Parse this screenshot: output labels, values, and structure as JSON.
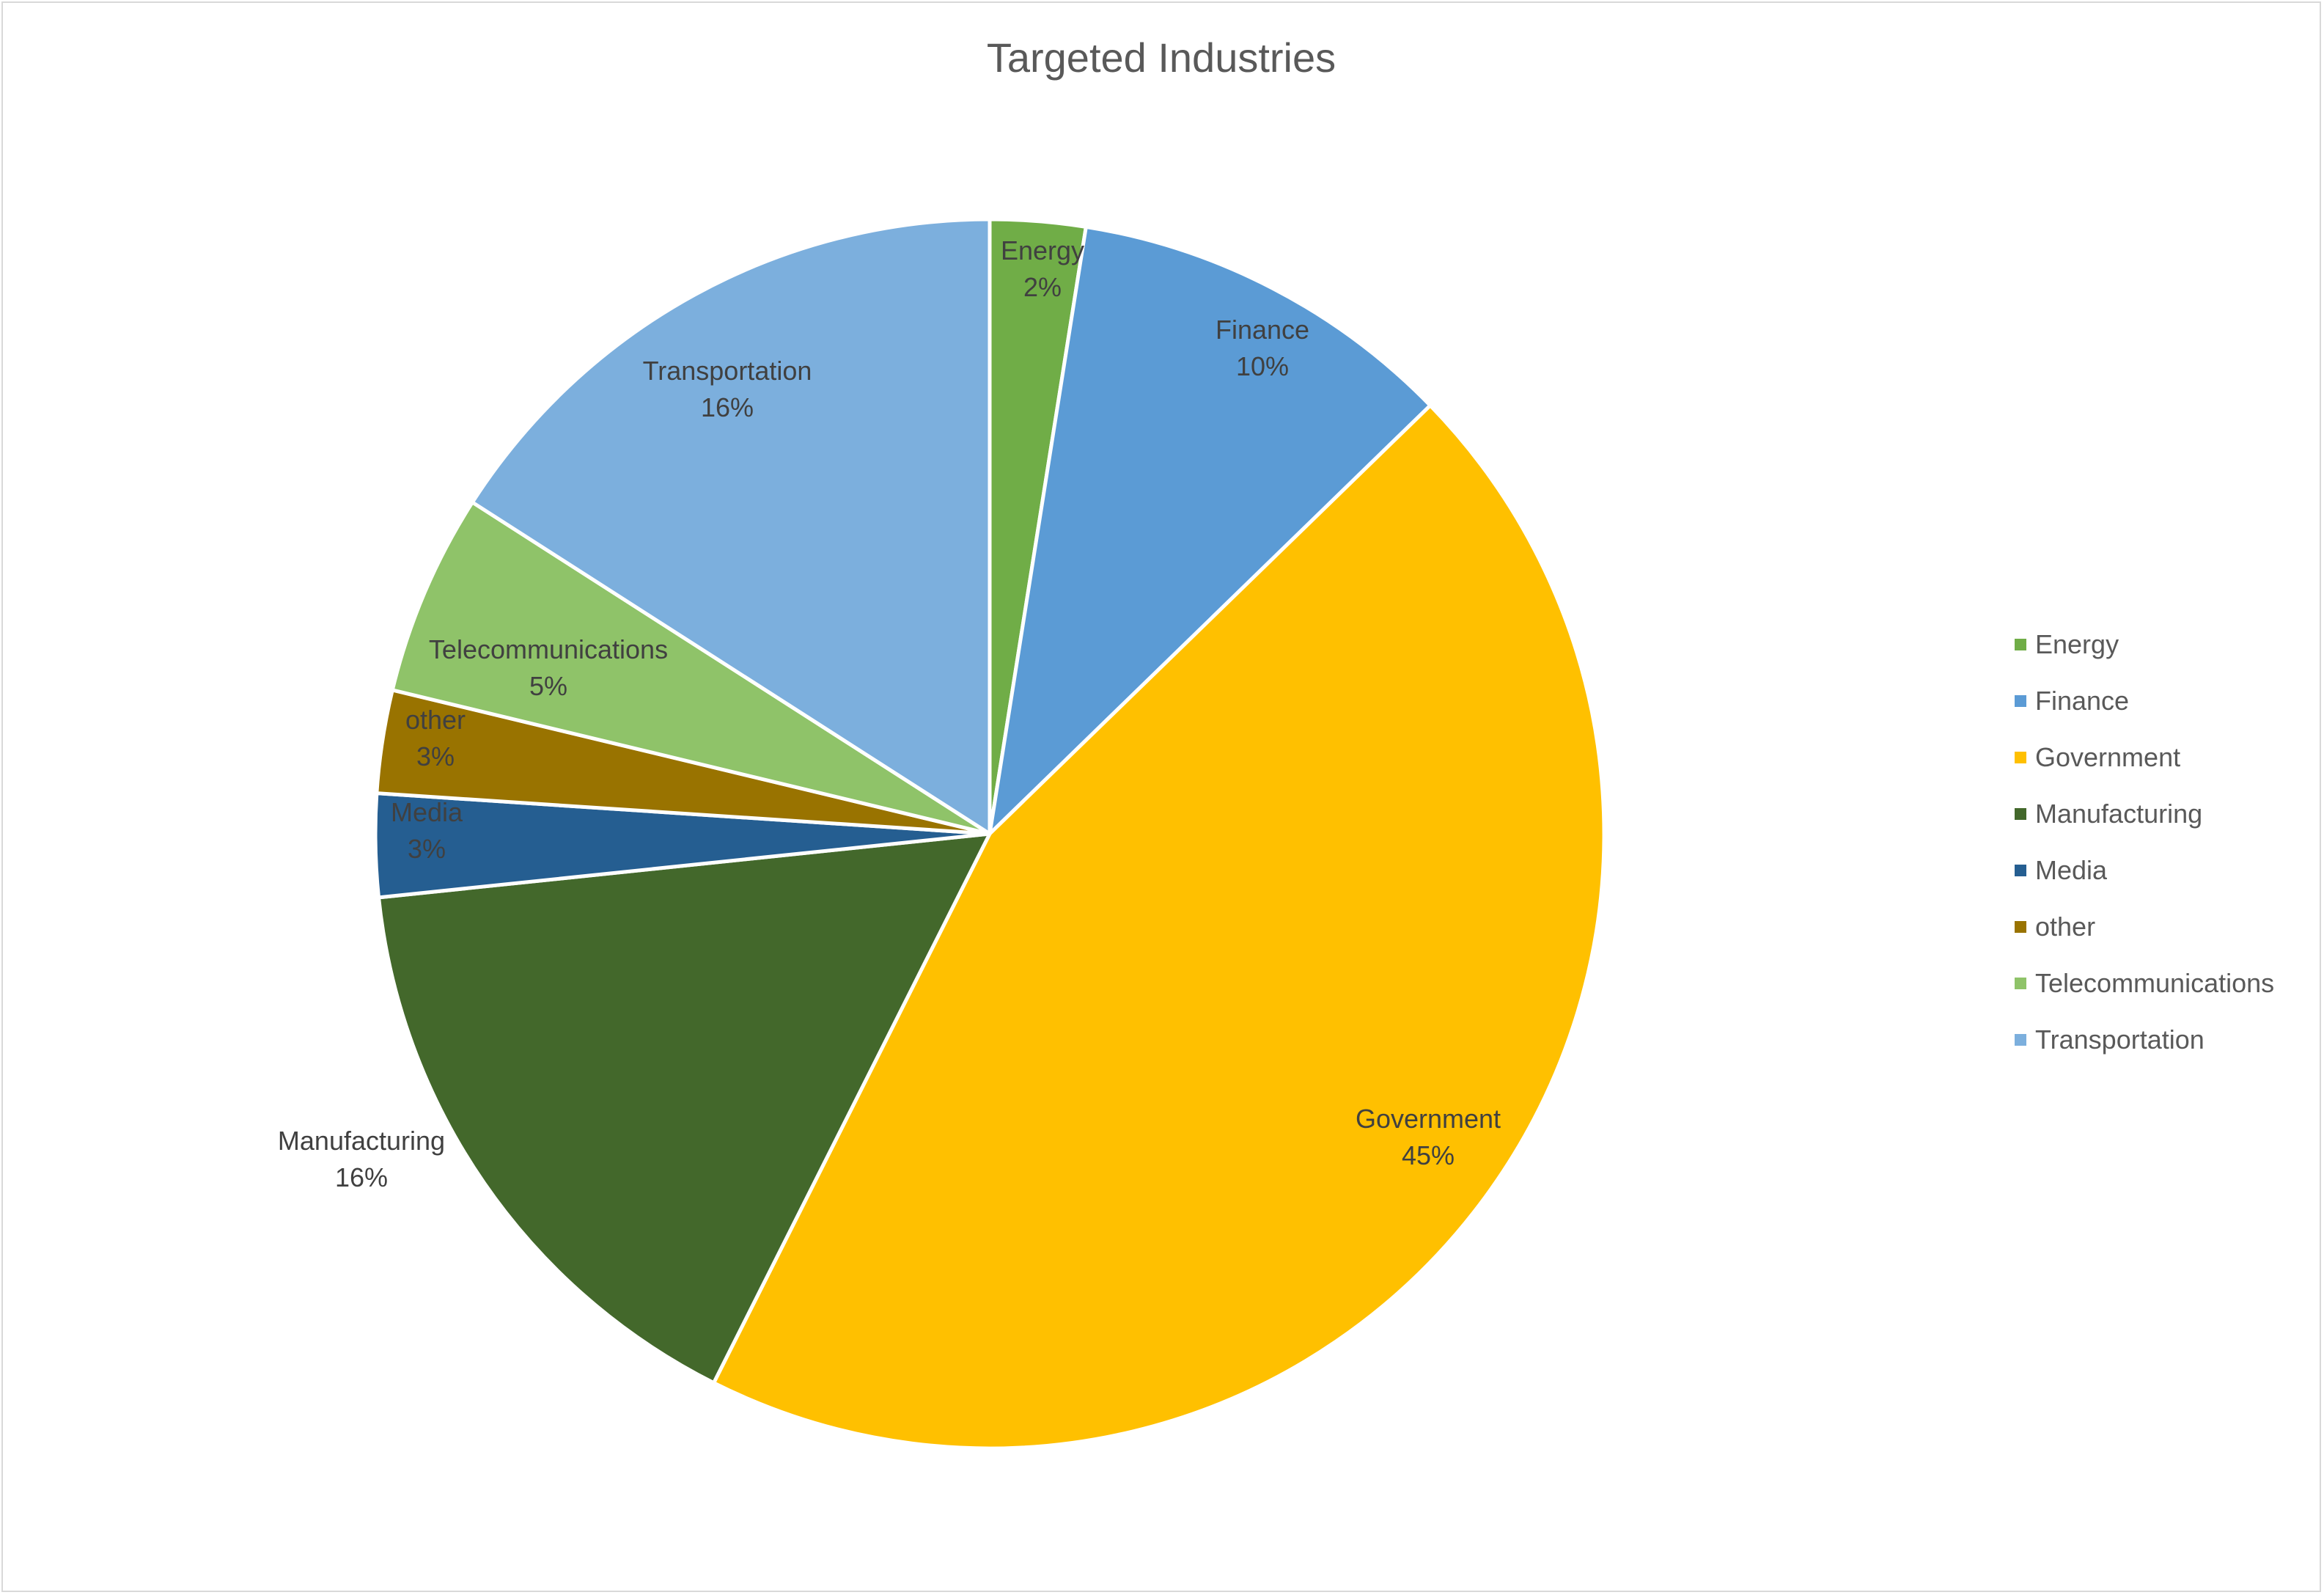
{
  "chart_data": {
    "type": "pie",
    "title": "Targeted Industries",
    "start_angle_deg": 0,
    "direction": "clockwise",
    "legend_position": "right",
    "slices": [
      {
        "label": "Energy",
        "percent_label": "2%",
        "value": 2.5,
        "color": "#70AD47"
      },
      {
        "label": "Finance",
        "percent_label": "10%",
        "value": 10.2,
        "color": "#5B9BD5"
      },
      {
        "label": "Government",
        "percent_label": "45%",
        "value": 44.6,
        "color": "#FFC000"
      },
      {
        "label": "Manufacturing",
        "percent_label": "16%",
        "value": 15.9,
        "color": "#43682B"
      },
      {
        "label": "Media",
        "percent_label": "3%",
        "value": 2.7,
        "color": "#255E91"
      },
      {
        "label": "other",
        "percent_label": "3%",
        "value": 2.7,
        "color": "#997300"
      },
      {
        "label": "Telecommunications",
        "percent_label": "5%",
        "value": 5.3,
        "color": "#8FC369"
      },
      {
        "label": "Transportation",
        "percent_label": "16%",
        "value": 15.9,
        "color": "#7CAFDD"
      }
    ]
  }
}
